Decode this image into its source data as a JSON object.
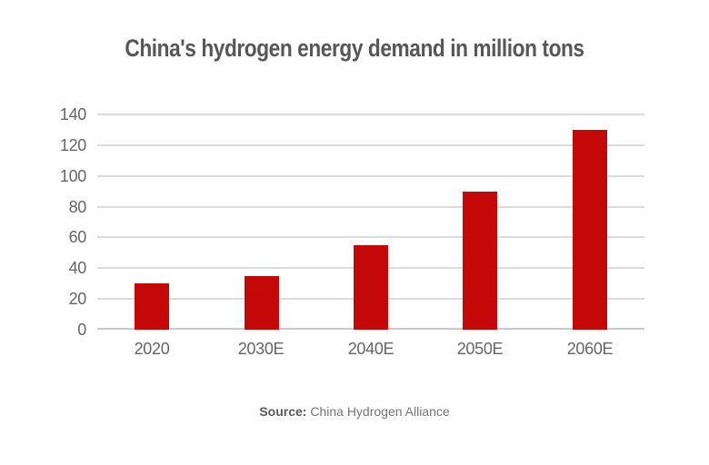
{
  "title": "China's hydrogen energy demand in million tons",
  "source": {
    "label": "Source:",
    "text": "China Hydrogen Alliance"
  },
  "colors": {
    "bar": "#C40808",
    "title_text": "#575757",
    "tick_text": "#666666",
    "gridline": "#DBDBDB",
    "baseline": "#C9C9C9",
    "source_label": "#595959",
    "source_text": "#757575",
    "background": "#FFFFFF"
  },
  "chart_data": {
    "type": "bar",
    "title": "China's hydrogen energy demand in million tons",
    "categories": [
      "2020",
      "2030E",
      "2040E",
      "2050E",
      "2060E"
    ],
    "values": [
      30,
      35,
      55,
      90,
      130
    ],
    "unit": "million tons",
    "xlabel": "",
    "ylabel": "",
    "ylim": [
      0,
      140
    ],
    "yticks": [
      0,
      20,
      40,
      60,
      80,
      100,
      120,
      140
    ],
    "grid": true,
    "legend": false,
    "bar_color": "#C40808",
    "source": "China Hydrogen Alliance"
  }
}
